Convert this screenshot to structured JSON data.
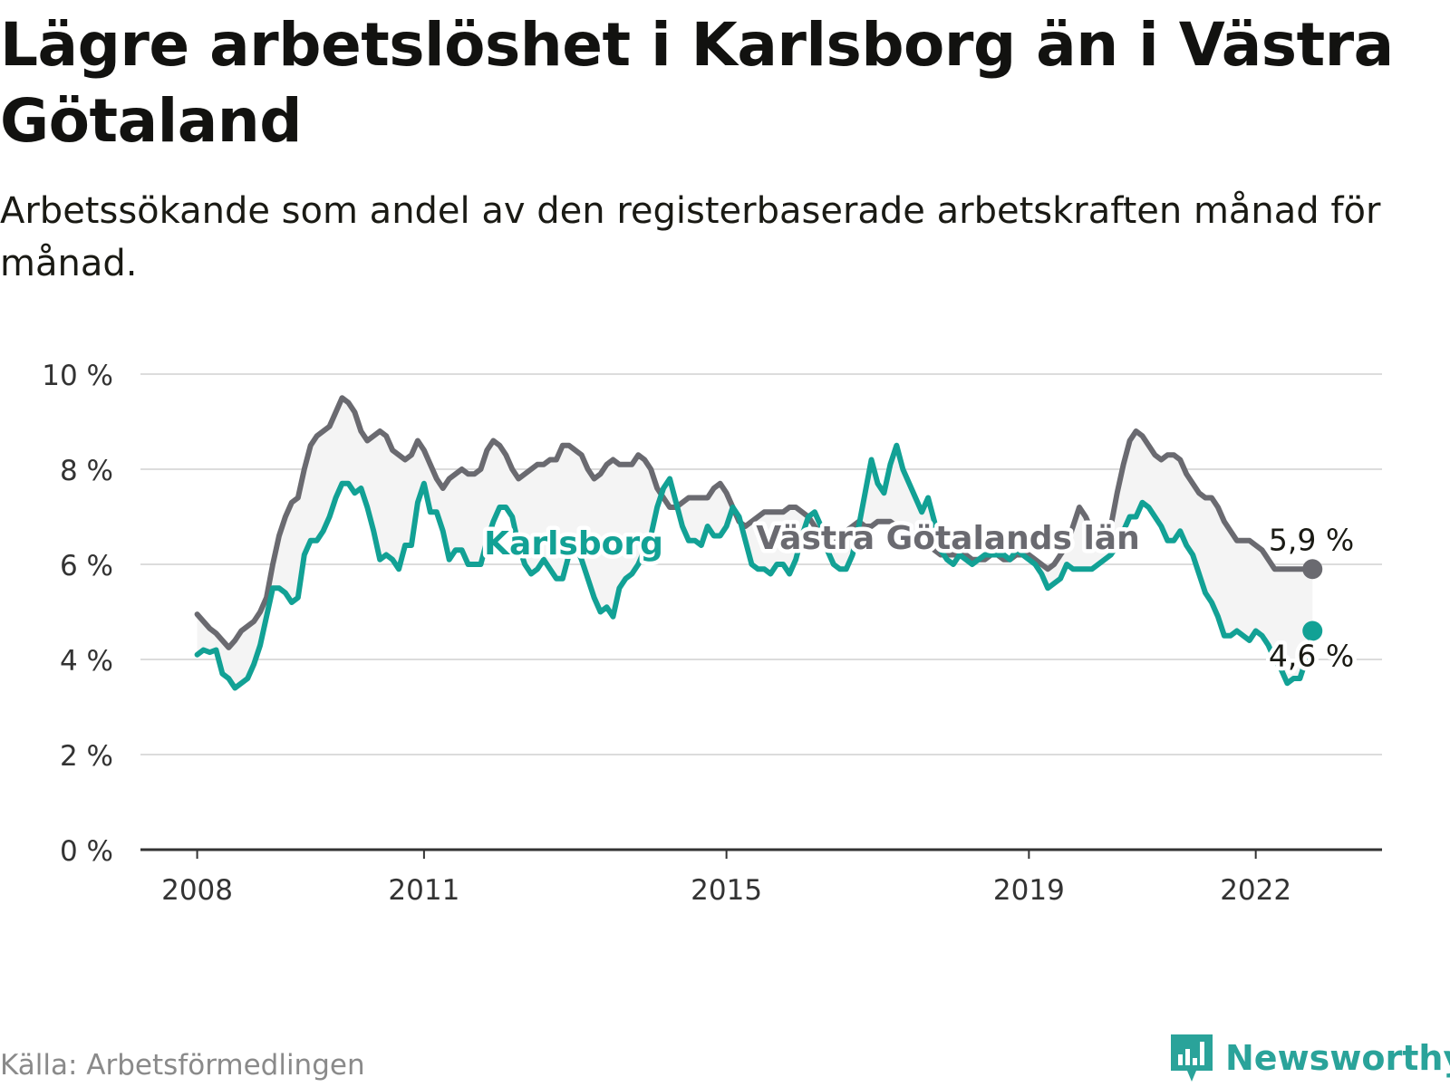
{
  "header": {
    "title": "Lägre arbetslöshet i Karlsborg än i Västra Götaland",
    "subtitle": "Arbetssökande som andel av den registerbaserade arbetskraften månad för månad."
  },
  "footer": {
    "source": "Källa: Arbetsförmedlingen",
    "brand": "Newsworthy"
  },
  "colors": {
    "karlsborg": "#12a195",
    "region": "#6a6a70",
    "grid": "#dcdcdc",
    "axis": "#333333",
    "band": "#f4f4f4",
    "brand": "#2aa39a"
  },
  "chart_data": {
    "type": "line",
    "title": "Lägre arbetslöshet i Karlsborg än i Västra Götaland",
    "xlabel": "",
    "ylabel": "",
    "x_start": 2008.0,
    "x_step_months": 1,
    "xlim": [
      2007.25,
      2023.67
    ],
    "ylim": [
      0,
      10
    ],
    "yticks": [
      0,
      2,
      4,
      6,
      8,
      10
    ],
    "ytick_labels": [
      "0 %",
      "2 %",
      "4 %",
      "6 %",
      "8 %",
      "10 %"
    ],
    "xticks": [
      2008,
      2011,
      2015,
      2019,
      2022
    ],
    "xtick_labels": [
      "2008",
      "2011",
      "2015",
      "2019",
      "2022"
    ],
    "grid": true,
    "series": [
      {
        "name": "Karlsborg",
        "label": "Karlsborg",
        "end_label": "4,6 %",
        "values": [
          4.1,
          4.2,
          4.15,
          4.2,
          3.7,
          3.6,
          3.4,
          3.5,
          3.6,
          3.9,
          4.3,
          4.9,
          5.5,
          5.5,
          5.4,
          5.2,
          5.3,
          6.2,
          6.5,
          6.5,
          6.7,
          7.0,
          7.4,
          7.7,
          7.7,
          7.5,
          7.6,
          7.2,
          6.7,
          6.1,
          6.2,
          6.1,
          5.9,
          6.4,
          6.4,
          7.3,
          7.7,
          7.1,
          7.1,
          6.7,
          6.1,
          6.3,
          6.3,
          6.0,
          6.0,
          6.0,
          6.5,
          6.9,
          7.2,
          7.2,
          7.0,
          6.4,
          6.0,
          5.8,
          5.9,
          6.1,
          5.9,
          5.7,
          5.7,
          6.2,
          6.4,
          6.1,
          5.7,
          5.3,
          5.0,
          5.1,
          4.9,
          5.5,
          5.7,
          5.8,
          6.0,
          6.3,
          6.6,
          7.2,
          7.6,
          7.8,
          7.3,
          6.8,
          6.5,
          6.5,
          6.4,
          6.8,
          6.6,
          6.6,
          6.8,
          7.2,
          7.0,
          6.5,
          6.0,
          5.9,
          5.9,
          5.8,
          6.0,
          6.0,
          5.8,
          6.1,
          6.6,
          7.0,
          7.1,
          6.8,
          6.3,
          6.0,
          5.9,
          5.9,
          6.2,
          6.8,
          7.5,
          8.2,
          7.7,
          7.5,
          8.1,
          8.5,
          8.0,
          7.7,
          7.4,
          7.1,
          7.4,
          6.9,
          6.3,
          6.1,
          6.0,
          6.2,
          6.1,
          6.0,
          6.1,
          6.2,
          6.2,
          6.2,
          6.2,
          6.1,
          6.3,
          6.2,
          6.1,
          6.0,
          5.8,
          5.5,
          5.6,
          5.7,
          6.0,
          5.9,
          5.9,
          5.9,
          5.9,
          6.0,
          6.1,
          6.2,
          6.4,
          6.7,
          7.0,
          7.0,
          7.3,
          7.2,
          7.0,
          6.8,
          6.5,
          6.5,
          6.7,
          6.4,
          6.2,
          5.8,
          5.4,
          5.2,
          4.9,
          4.5,
          4.5,
          4.6,
          4.5,
          4.4,
          4.6,
          4.5,
          4.3,
          4.0,
          3.8,
          3.5,
          3.6,
          3.6,
          4.0,
          4.6
        ]
      },
      {
        "name": "Västra Götalands län",
        "label": "Västra Götalands län",
        "end_label": "5,9 %",
        "values": [
          4.95,
          4.8,
          4.65,
          4.55,
          4.4,
          4.25,
          4.4,
          4.6,
          4.7,
          4.8,
          5.0,
          5.3,
          6.0,
          6.6,
          7.0,
          7.3,
          7.4,
          8.0,
          8.5,
          8.7,
          8.8,
          8.9,
          9.2,
          9.5,
          9.4,
          9.2,
          8.8,
          8.6,
          8.7,
          8.8,
          8.7,
          8.4,
          8.3,
          8.2,
          8.3,
          8.6,
          8.4,
          8.1,
          7.8,
          7.6,
          7.8,
          7.9,
          8.0,
          7.9,
          7.9,
          8.0,
          8.4,
          8.6,
          8.5,
          8.3,
          8.0,
          7.8,
          7.9,
          8.0,
          8.1,
          8.1,
          8.2,
          8.2,
          8.5,
          8.5,
          8.4,
          8.3,
          8.0,
          7.8,
          7.9,
          8.1,
          8.2,
          8.1,
          8.1,
          8.1,
          8.3,
          8.2,
          8.0,
          7.6,
          7.4,
          7.2,
          7.2,
          7.3,
          7.4,
          7.4,
          7.4,
          7.4,
          7.6,
          7.7,
          7.5,
          7.2,
          6.9,
          6.8,
          6.9,
          7.0,
          7.1,
          7.1,
          7.1,
          7.1,
          7.2,
          7.2,
          7.1,
          7.0,
          6.8,
          6.6,
          6.5,
          6.5,
          6.6,
          6.7,
          6.8,
          6.9,
          6.8,
          6.8,
          6.9,
          6.9,
          6.9,
          6.8,
          6.7,
          6.6,
          6.6,
          6.5,
          6.4,
          6.3,
          6.2,
          6.2,
          6.2,
          6.2,
          6.2,
          6.1,
          6.1,
          6.1,
          6.2,
          6.2,
          6.1,
          6.1,
          6.2,
          6.2,
          6.2,
          6.1,
          6.0,
          5.9,
          6.0,
          6.2,
          6.4,
          6.8,
          7.2,
          7.0,
          6.7,
          6.6,
          6.6,
          6.8,
          7.5,
          8.1,
          8.6,
          8.8,
          8.7,
          8.5,
          8.3,
          8.2,
          8.3,
          8.3,
          8.2,
          7.9,
          7.7,
          7.5,
          7.4,
          7.4,
          7.2,
          6.9,
          6.7,
          6.5,
          6.5,
          6.5,
          6.4,
          6.3,
          6.1,
          5.9,
          5.9,
          5.9,
          5.9,
          5.9,
          5.9,
          5.9
        ]
      }
    ]
  }
}
